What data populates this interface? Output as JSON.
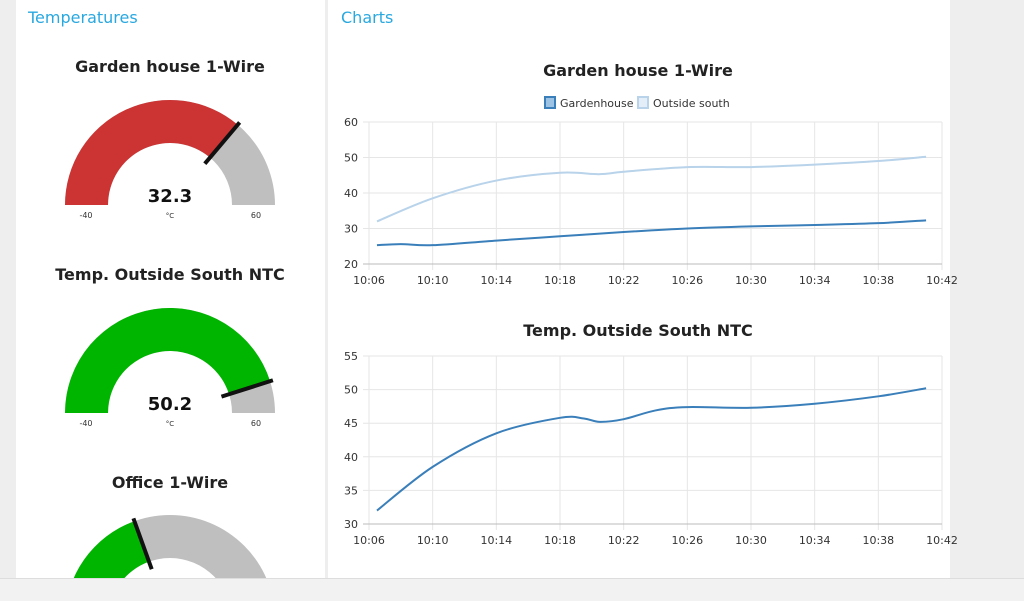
{
  "groups": {
    "temperatures": "Temperatures",
    "charts": "Charts"
  },
  "gauges": [
    {
      "title": "Garden house 1-Wire",
      "value": 32.3,
      "value_text": "32.3",
      "min": -40,
      "max": 60,
      "min_label": "-40",
      "max_label": "60",
      "unit": "°C",
      "color": "#cc3333"
    },
    {
      "title": "Temp. Outside South NTC",
      "value": 50.2,
      "value_text": "50.2",
      "min": -40,
      "max": 60,
      "min_label": "-40",
      "max_label": "60",
      "unit": "°C",
      "color": "#00b500"
    },
    {
      "title": "Office 1-Wire",
      "value": -1,
      "value_text": "",
      "min": -40,
      "max": 60,
      "min_label": "",
      "max_label": "",
      "unit": "",
      "color": "#00b500"
    }
  ],
  "colors": {
    "gauge_track": "#bfbfbf",
    "needle": "#111111",
    "series_dark": "#3a7fba",
    "series_light": "#b8d3ea",
    "grid": "#e6e6e6",
    "group_title": "#29a8e0"
  },
  "chart_data": [
    {
      "type": "line",
      "title": "Garden house 1-Wire",
      "xlabel": "",
      "ylabel": "",
      "x_ticks": [
        "10:06",
        "10:10",
        "10:14",
        "10:18",
        "10:22",
        "10:26",
        "10:30",
        "10:34",
        "10:38",
        "10:42"
      ],
      "y_ticks": [
        "20",
        "30",
        "40",
        "50",
        "60"
      ],
      "xlim_minutes": [
        366,
        402
      ],
      "ylim": [
        20,
        60
      ],
      "grid": true,
      "legend": "top-center",
      "series": [
        {
          "name": "Gardenhouse",
          "color": "#3a7fba",
          "x": [
            366.5,
            368,
            370,
            374,
            378,
            382,
            386,
            390,
            394,
            398,
            401
          ],
          "y": [
            25.3,
            25.6,
            25.3,
            26.6,
            27.8,
            29.0,
            30.0,
            30.6,
            31.0,
            31.5,
            32.3
          ]
        },
        {
          "name": "Outside south",
          "color": "#b8d3ea",
          "x": [
            366.5,
            370,
            374,
            378,
            380.5,
            382,
            386,
            390,
            394,
            398,
            401
          ],
          "y": [
            32.0,
            38.5,
            43.5,
            45.7,
            45.3,
            46.0,
            47.3,
            47.3,
            48.0,
            49.0,
            50.2
          ]
        }
      ]
    },
    {
      "type": "line",
      "title": "Temp. Outside South NTC",
      "xlabel": "",
      "ylabel": "",
      "x_ticks": [
        "10:06",
        "10:10",
        "10:14",
        "10:18",
        "10:22",
        "10:26",
        "10:30",
        "10:34",
        "10:38",
        "10:42"
      ],
      "y_ticks": [
        "30",
        "35",
        "40",
        "45",
        "50",
        "55"
      ],
      "xlim_minutes": [
        366,
        402
      ],
      "ylim": [
        30,
        55
      ],
      "grid": true,
      "legend": "none",
      "series": [
        {
          "name": "",
          "color": "#3a7fba",
          "x": [
            366.5,
            370,
            374,
            378,
            379.5,
            380.5,
            382,
            384,
            386,
            390,
            394,
            398,
            401
          ],
          "y": [
            32.0,
            38.5,
            43.5,
            45.8,
            45.7,
            45.2,
            45.6,
            46.9,
            47.4,
            47.3,
            47.9,
            49.0,
            50.2
          ]
        }
      ]
    }
  ]
}
